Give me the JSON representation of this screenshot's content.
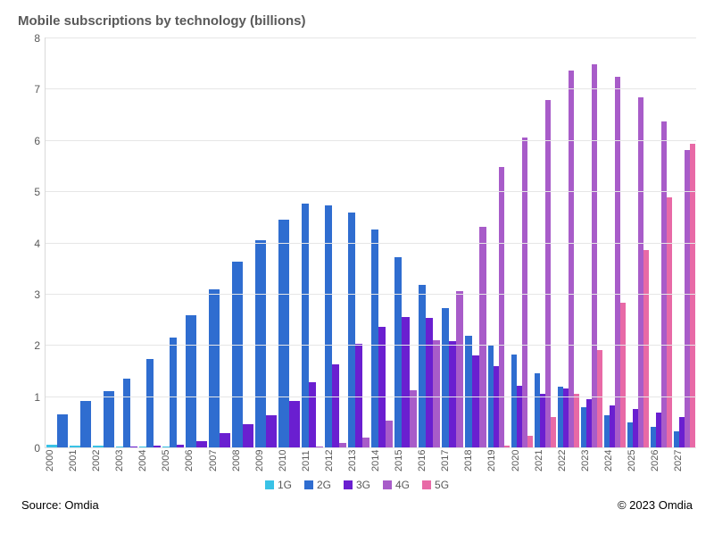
{
  "title": "Mobile subscriptions by technology (billions)",
  "source_label": "Source: Omdia",
  "copyright": "© 2023 Omdia",
  "chart": {
    "type": "bar",
    "ylim": [
      0,
      8
    ],
    "ytick_step": 1,
    "background_color": "#ffffff",
    "grid_color": "#e6e6e6",
    "axis_color": "#d9d9d9",
    "label_color": "#595959",
    "title_fontsize": 15,
    "tick_fontsize": 12,
    "categories": [
      "2000",
      "2001",
      "2002",
      "2003",
      "2004",
      "2005",
      "2006",
      "2007",
      "2008",
      "2009",
      "2010",
      "2011",
      "2012",
      "2013",
      "2014",
      "2015",
      "2016",
      "2017",
      "2018",
      "2019",
      "2020",
      "2021",
      "2022",
      "2023",
      "2024",
      "2025",
      "2026",
      "2027"
    ],
    "series": [
      {
        "name": "1G",
        "color": "#39c2e6",
        "values": [
          0.05,
          0.04,
          0.03,
          0.02,
          0.01,
          0.01,
          0,
          0,
          0,
          0,
          0,
          0,
          0,
          0,
          0,
          0,
          0,
          0,
          0,
          0,
          0,
          0,
          0,
          0,
          0,
          0,
          0,
          0
        ]
      },
      {
        "name": "2G",
        "color": "#2f6dd0",
        "values": [
          0.65,
          0.9,
          1.1,
          1.35,
          1.72,
          2.15,
          2.58,
          3.08,
          3.62,
          4.05,
          4.45,
          4.75,
          4.73,
          4.58,
          4.25,
          3.72,
          3.18,
          2.72,
          2.18,
          2.0,
          1.82,
          1.45,
          1.18,
          0.78,
          0.62,
          0.48,
          0.4,
          0.32
        ]
      },
      {
        "name": "3G",
        "color": "#6a1fd0",
        "values": [
          0,
          0,
          0,
          0.02,
          0.04,
          0.06,
          0.12,
          0.28,
          0.46,
          0.62,
          0.9,
          1.28,
          1.62,
          2.02,
          2.35,
          2.55,
          2.52,
          2.08,
          1.8,
          1.58,
          1.2,
          1.05,
          1.15,
          0.95,
          0.82,
          0.75,
          0.68,
          0.6
        ]
      },
      {
        "name": "4G",
        "color": "#a85cc9",
        "values": [
          0,
          0,
          0,
          0,
          0,
          0,
          0,
          0,
          0,
          0,
          0,
          0.02,
          0.08,
          0.2,
          0.52,
          1.12,
          2.1,
          3.05,
          4.3,
          5.48,
          6.05,
          6.78,
          7.36,
          7.47,
          7.24,
          6.84,
          6.36,
          5.8
        ]
      },
      {
        "name": "5G",
        "color": "#e86aa6",
        "values": [
          0,
          0,
          0,
          0,
          0,
          0,
          0,
          0,
          0,
          0,
          0,
          0,
          0,
          0,
          0,
          0,
          0,
          0,
          0,
          0.03,
          0.22,
          0.6,
          1.05,
          1.9,
          2.82,
          3.85,
          4.88,
          5.92
        ]
      }
    ]
  }
}
